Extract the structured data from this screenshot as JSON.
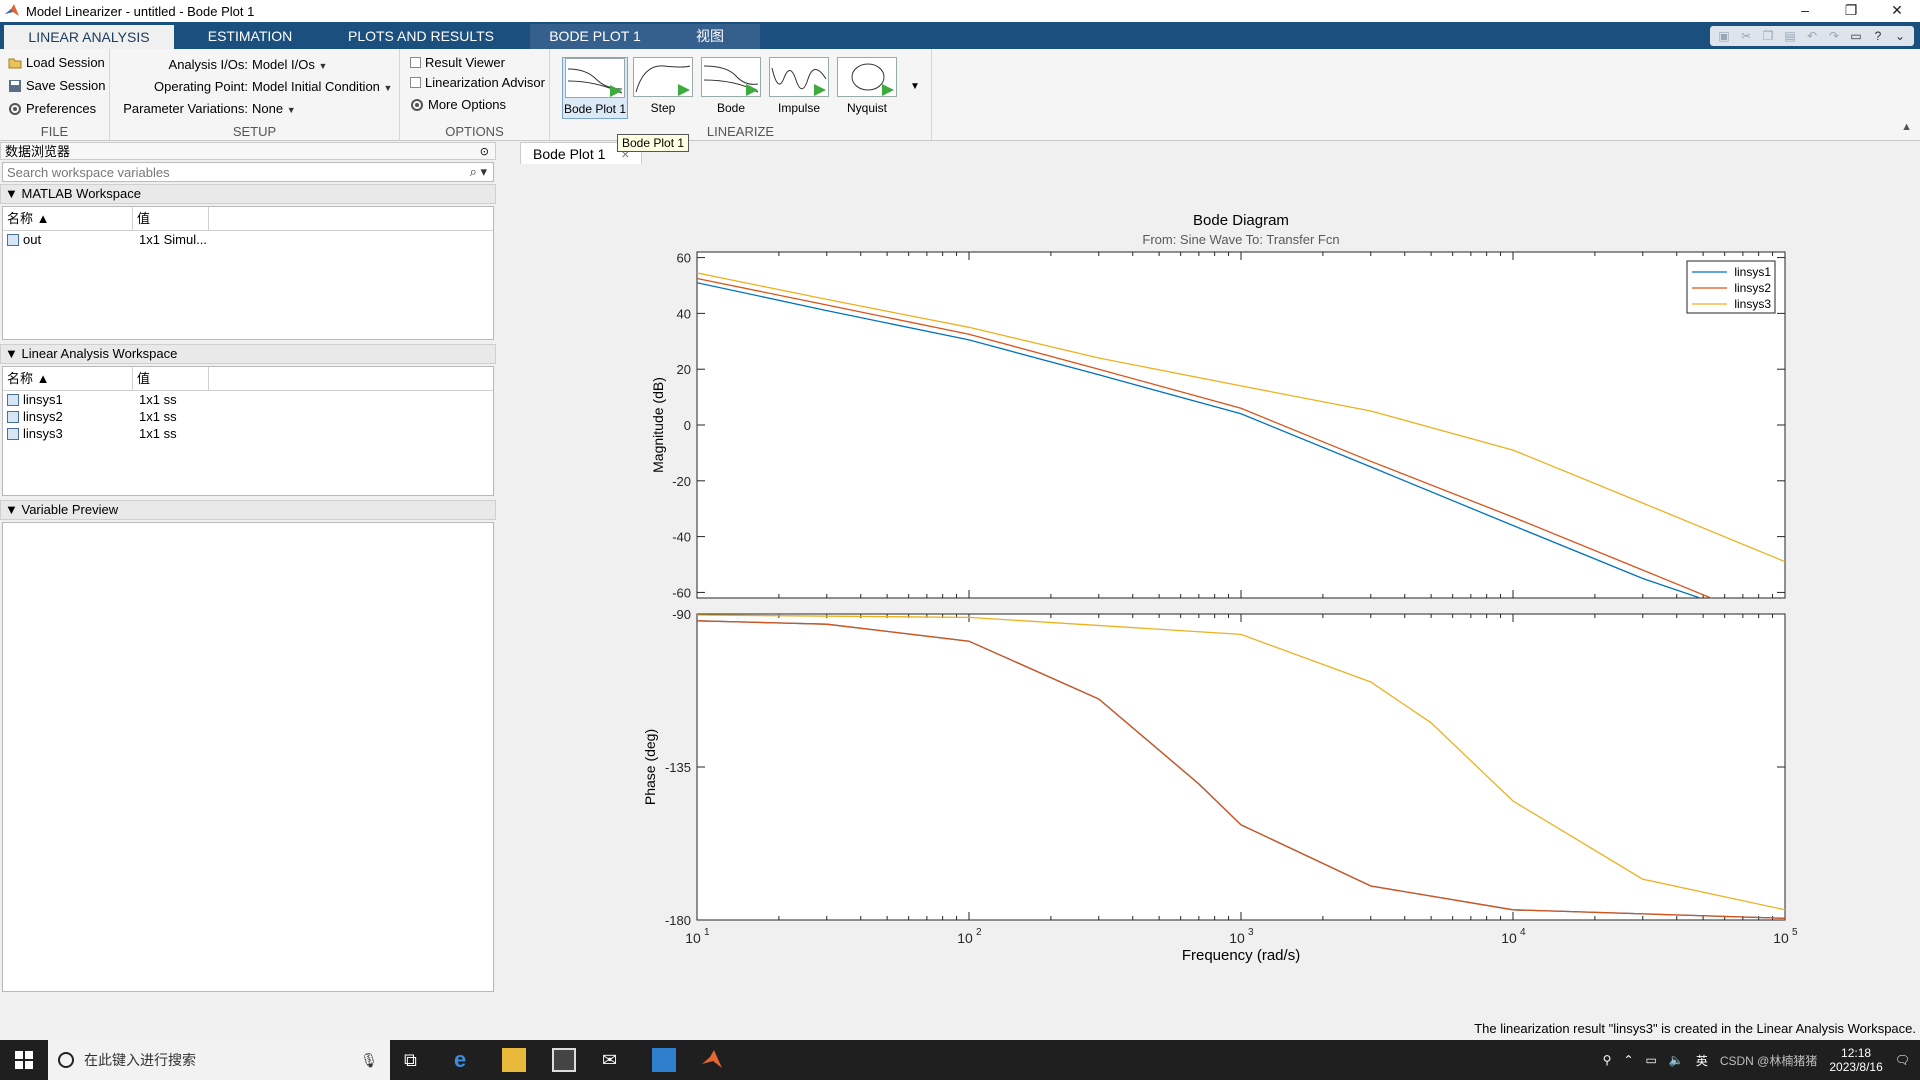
{
  "window": {
    "title": "Model Linearizer - untitled - Bode Plot 1",
    "min": "–",
    "restore": "❐",
    "close": "✕"
  },
  "tabs": [
    {
      "label": "LINEAR ANALYSIS"
    },
    {
      "label": "ESTIMATION"
    },
    {
      "label": "PLOTS AND RESULTS"
    },
    {
      "label": "BODE PLOT 1"
    },
    {
      "label": "视图"
    }
  ],
  "ribbon": {
    "file": {
      "label": "FILE",
      "load": "Load Session",
      "save": "Save Session",
      "prefs": "Preferences"
    },
    "setup": {
      "label": "SETUP",
      "io_label": "Analysis I/Os:",
      "io_value": "Model I/Os",
      "op_label": "Operating Point:",
      "op_value": "Model Initial Condition",
      "pv_label": "Parameter Variations:",
      "pv_value": "None"
    },
    "options": {
      "label": "OPTIONS",
      "result_viewer": "Result Viewer",
      "lin_advisor": "Linearization Advisor",
      "more": "More Options"
    },
    "linearize": {
      "label": "LINEARIZE",
      "buttons": [
        "Bode Plot 1",
        "Step",
        "Bode",
        "Impulse",
        "Nyquist"
      ]
    }
  },
  "browser": {
    "title": "数据浏览器",
    "search_placeholder": "Search workspace variables",
    "matlab_ws": {
      "title": "MATLAB Workspace",
      "col_name": "名称 ▲",
      "col_value": "值",
      "rows": [
        {
          "name": "out",
          "value": "1x1 Simul..."
        }
      ]
    },
    "lin_ws": {
      "title": "Linear Analysis Workspace",
      "col_name": "名称 ▲",
      "col_value": "值",
      "rows": [
        {
          "name": "linsys1",
          "value": "1x1 ss"
        },
        {
          "name": "linsys2",
          "value": "1x1 ss"
        },
        {
          "name": "linsys3",
          "value": "1x1 ss"
        }
      ]
    },
    "preview": {
      "title": "Variable Preview"
    }
  },
  "doc_tab": {
    "label": "Bode Plot 1",
    "close": "×",
    "tooltip": "Bode Plot 1"
  },
  "chart_data": {
    "type": "line",
    "title": "Bode Diagram",
    "subtitle": "From: Sine Wave  To: Transfer Fcn",
    "xlabel": "Frequency  (rad/s)",
    "xscale": "log",
    "xlim": [
      10,
      100000
    ],
    "x_ticks": [
      "10",
      "10",
      "10",
      "10",
      "10"
    ],
    "x_tick_exps": [
      "1",
      "2",
      "3",
      "4",
      "5"
    ],
    "magnitude": {
      "ylabel": "Magnitude (dB)",
      "ylim": [
        -62,
        62
      ],
      "yticks": [
        "60",
        "40",
        "20",
        "0",
        "-20",
        "-40",
        "-60"
      ],
      "ytick_values": [
        60,
        40,
        20,
        0,
        -20,
        -40,
        -60
      ]
    },
    "phase": {
      "ylabel": "Phase (deg)",
      "ylim": [
        -180,
        -90
      ],
      "yticks": [
        "-90",
        "-135",
        "-180"
      ],
      "ytick_values": [
        -90,
        -135,
        -180
      ]
    },
    "series": [
      {
        "name": "linsys1",
        "color": "#0072bd",
        "mag": [
          [
            10,
            51
          ],
          [
            30,
            41
          ],
          [
            100,
            30.5
          ],
          [
            300,
            18
          ],
          [
            1000,
            4
          ],
          [
            3000,
            -15
          ],
          [
            10000,
            -36
          ],
          [
            30000,
            -55
          ],
          [
            60000,
            -65
          ]
        ],
        "phase": [
          [
            10,
            -92
          ],
          [
            30,
            -93
          ],
          [
            100,
            -98
          ],
          [
            300,
            -115
          ],
          [
            700,
            -140
          ],
          [
            1000,
            -152
          ],
          [
            3000,
            -170
          ],
          [
            10000,
            -177
          ],
          [
            100000,
            -179.5
          ]
        ]
      },
      {
        "name": "linsys2",
        "color": "#d95319",
        "mag": [
          [
            10,
            52.5
          ],
          [
            30,
            43
          ],
          [
            100,
            32.5
          ],
          [
            300,
            20
          ],
          [
            1000,
            6
          ],
          [
            3000,
            -13
          ],
          [
            10000,
            -33
          ],
          [
            30000,
            -52
          ],
          [
            60000,
            -64
          ]
        ],
        "phase": [
          [
            10,
            -92
          ],
          [
            30,
            -93
          ],
          [
            100,
            -98
          ],
          [
            300,
            -115
          ],
          [
            700,
            -140
          ],
          [
            1000,
            -152
          ],
          [
            3000,
            -170
          ],
          [
            10000,
            -177
          ],
          [
            100000,
            -179.5
          ]
        ]
      },
      {
        "name": "linsys3",
        "color": "#edb120",
        "mag": [
          [
            10,
            54.5
          ],
          [
            30,
            45
          ],
          [
            100,
            35
          ],
          [
            300,
            24
          ],
          [
            1000,
            14
          ],
          [
            3000,
            5
          ],
          [
            10000,
            -9
          ],
          [
            30000,
            -28
          ],
          [
            100000,
            -49
          ]
        ],
        "phase": [
          [
            10,
            -90.3
          ],
          [
            100,
            -91
          ],
          [
            1000,
            -96
          ],
          [
            3000,
            -110
          ],
          [
            5000,
            -122
          ],
          [
            10000,
            -145
          ],
          [
            30000,
            -168
          ],
          [
            100000,
            -177
          ]
        ]
      }
    ],
    "legend": "top-right"
  },
  "status": "The linearization result \"linsys3\" is created in the Linear Analysis Workspace.",
  "taskbar": {
    "search": "在此键入进行搜索",
    "time": "12:18",
    "date": "2023/8/16",
    "ime": "英",
    "watermark": "CSDN @林楠猪猪"
  }
}
